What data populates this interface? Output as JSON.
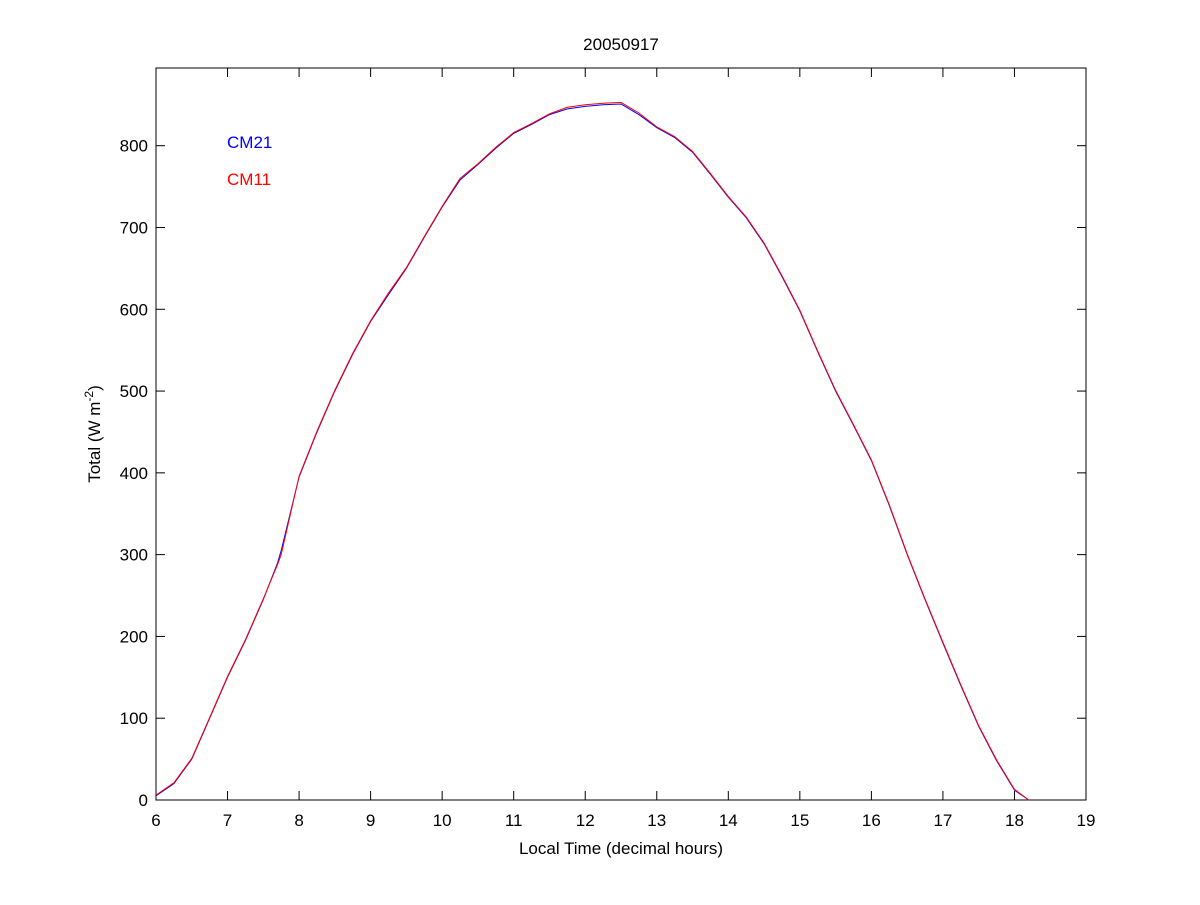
{
  "chart_data": {
    "type": "line",
    "title": "20050917",
    "xlabel": "Local Time (decimal hours)",
    "ylabel_main": "Total (W m",
    "ylabel_sup": "-2",
    "ylabel_close": ")",
    "xlim": [
      6,
      19
    ],
    "ylim": [
      0,
      895
    ],
    "xticks": [
      6,
      7,
      8,
      9,
      10,
      11,
      12,
      13,
      14,
      15,
      16,
      17,
      18,
      19
    ],
    "yticks": [
      0,
      100,
      200,
      300,
      400,
      500,
      600,
      700,
      800
    ],
    "grid": false,
    "legend_placement": "top-left",
    "series": [
      {
        "name": "CM21",
        "color": "#0000ff",
        "x": [
          6.0,
          6.25,
          6.5,
          6.75,
          7.0,
          7.25,
          7.5,
          7.7,
          7.75,
          8.0,
          8.25,
          8.5,
          8.75,
          9.0,
          9.25,
          9.5,
          9.75,
          10.0,
          10.25,
          10.5,
          10.75,
          11.0,
          11.25,
          11.5,
          11.75,
          12.0,
          12.25,
          12.5,
          12.75,
          13.0,
          13.25,
          13.5,
          13.75,
          14.0,
          14.25,
          14.5,
          14.75,
          15.0,
          15.25,
          15.5,
          15.75,
          16.0,
          16.25,
          16.5,
          16.75,
          17.0,
          17.25,
          17.5,
          17.75,
          18.0,
          18.2
        ],
        "y": [
          5,
          20,
          50,
          100,
          150,
          195,
          245,
          290,
          305,
          395,
          450,
          500,
          545,
          585,
          618,
          650,
          688,
          725,
          758,
          777,
          797,
          815,
          826,
          838,
          845,
          848,
          850,
          851,
          838,
          822,
          810,
          792,
          765,
          737,
          712,
          680,
          640,
          598,
          548,
          500,
          458,
          415,
          360,
          300,
          245,
          192,
          140,
          90,
          48,
          12,
          0
        ]
      },
      {
        "name": "CM11",
        "color": "#ff0000",
        "x": [
          6.0,
          6.25,
          6.5,
          6.75,
          7.0,
          7.25,
          7.5,
          7.7,
          7.75,
          8.0,
          8.25,
          8.5,
          8.75,
          9.0,
          9.25,
          9.5,
          9.75,
          10.0,
          10.25,
          10.5,
          10.75,
          11.0,
          11.25,
          11.5,
          11.75,
          12.0,
          12.25,
          12.5,
          12.75,
          13.0,
          13.25,
          13.5,
          13.75,
          14.0,
          14.25,
          14.5,
          14.75,
          15.0,
          15.25,
          15.5,
          15.75,
          16.0,
          16.25,
          16.5,
          16.75,
          17.0,
          17.25,
          17.5,
          17.75,
          18.0,
          18.2
        ],
        "y": [
          6,
          21,
          51,
          101,
          151,
          196,
          246,
          288,
          300,
          396,
          451,
          501,
          546,
          586,
          620,
          651,
          689,
          726,
          760,
          778,
          798,
          816,
          827,
          839,
          847,
          850,
          852,
          853,
          840,
          823,
          811,
          793,
          766,
          738,
          713,
          681,
          641,
          599,
          549,
          501,
          459,
          416,
          361,
          301,
          246,
          193,
          141,
          91,
          49,
          13,
          0
        ]
      }
    ]
  }
}
